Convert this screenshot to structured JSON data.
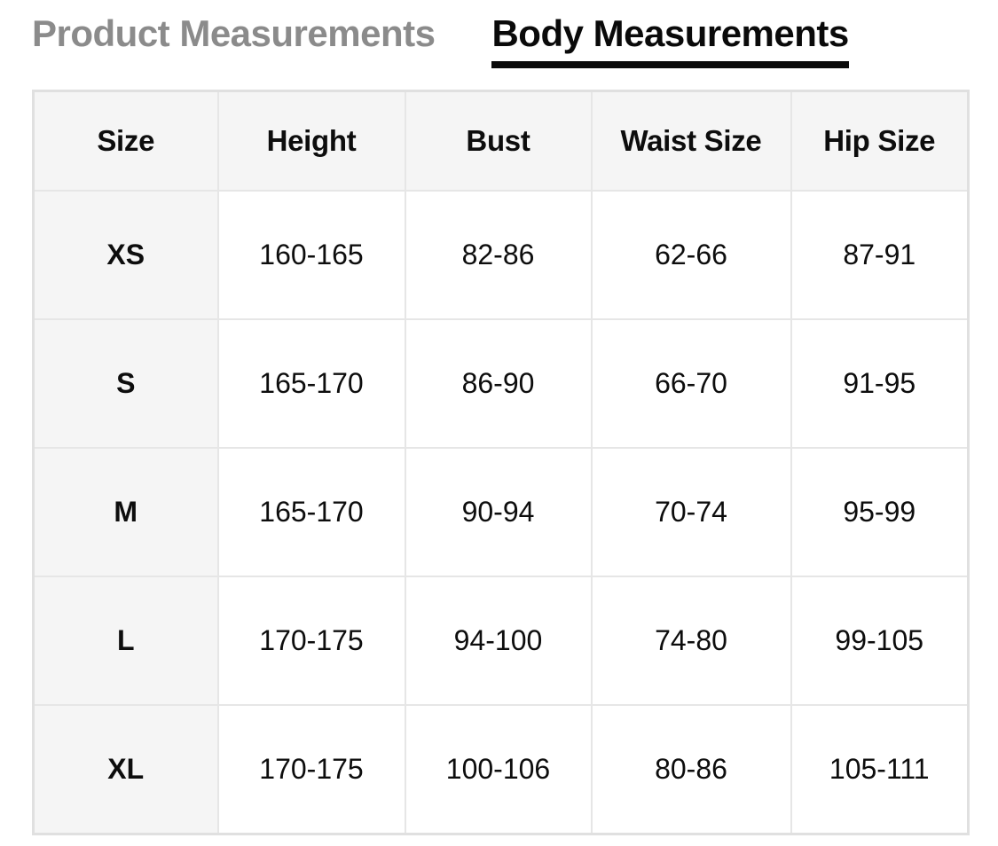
{
  "tabs": {
    "product": {
      "label": "Product Measurements",
      "active": false
    },
    "body": {
      "label": "Body Measurements",
      "active": true
    }
  },
  "table": {
    "columns": [
      "Size",
      "Height",
      "Bust",
      "Waist Size",
      "Hip Size"
    ],
    "rows": [
      {
        "size": "XS",
        "values": [
          "160-165",
          "82-86",
          "62-66",
          "87-91"
        ]
      },
      {
        "size": "S",
        "values": [
          "165-170",
          "86-90",
          "66-70",
          "91-95"
        ]
      },
      {
        "size": "M",
        "values": [
          "165-170",
          "90-94",
          "70-74",
          "95-99"
        ]
      },
      {
        "size": "L",
        "values": [
          "170-175",
          "94-100",
          "74-80",
          "99-105"
        ]
      },
      {
        "size": "XL",
        "values": [
          "170-175",
          "100-106",
          "80-86",
          "105-111"
        ]
      }
    ]
  },
  "colors": {
    "active_tab_text": "#0a0a0a",
    "active_tab_underline": "#0a0a0a",
    "inactive_tab_text": "#8b8b8b",
    "header_cell_bg": "#f5f5f5",
    "cell_bg": "#ffffff",
    "border": "#e6e6e6",
    "cell_text": "#0d0d0d"
  }
}
